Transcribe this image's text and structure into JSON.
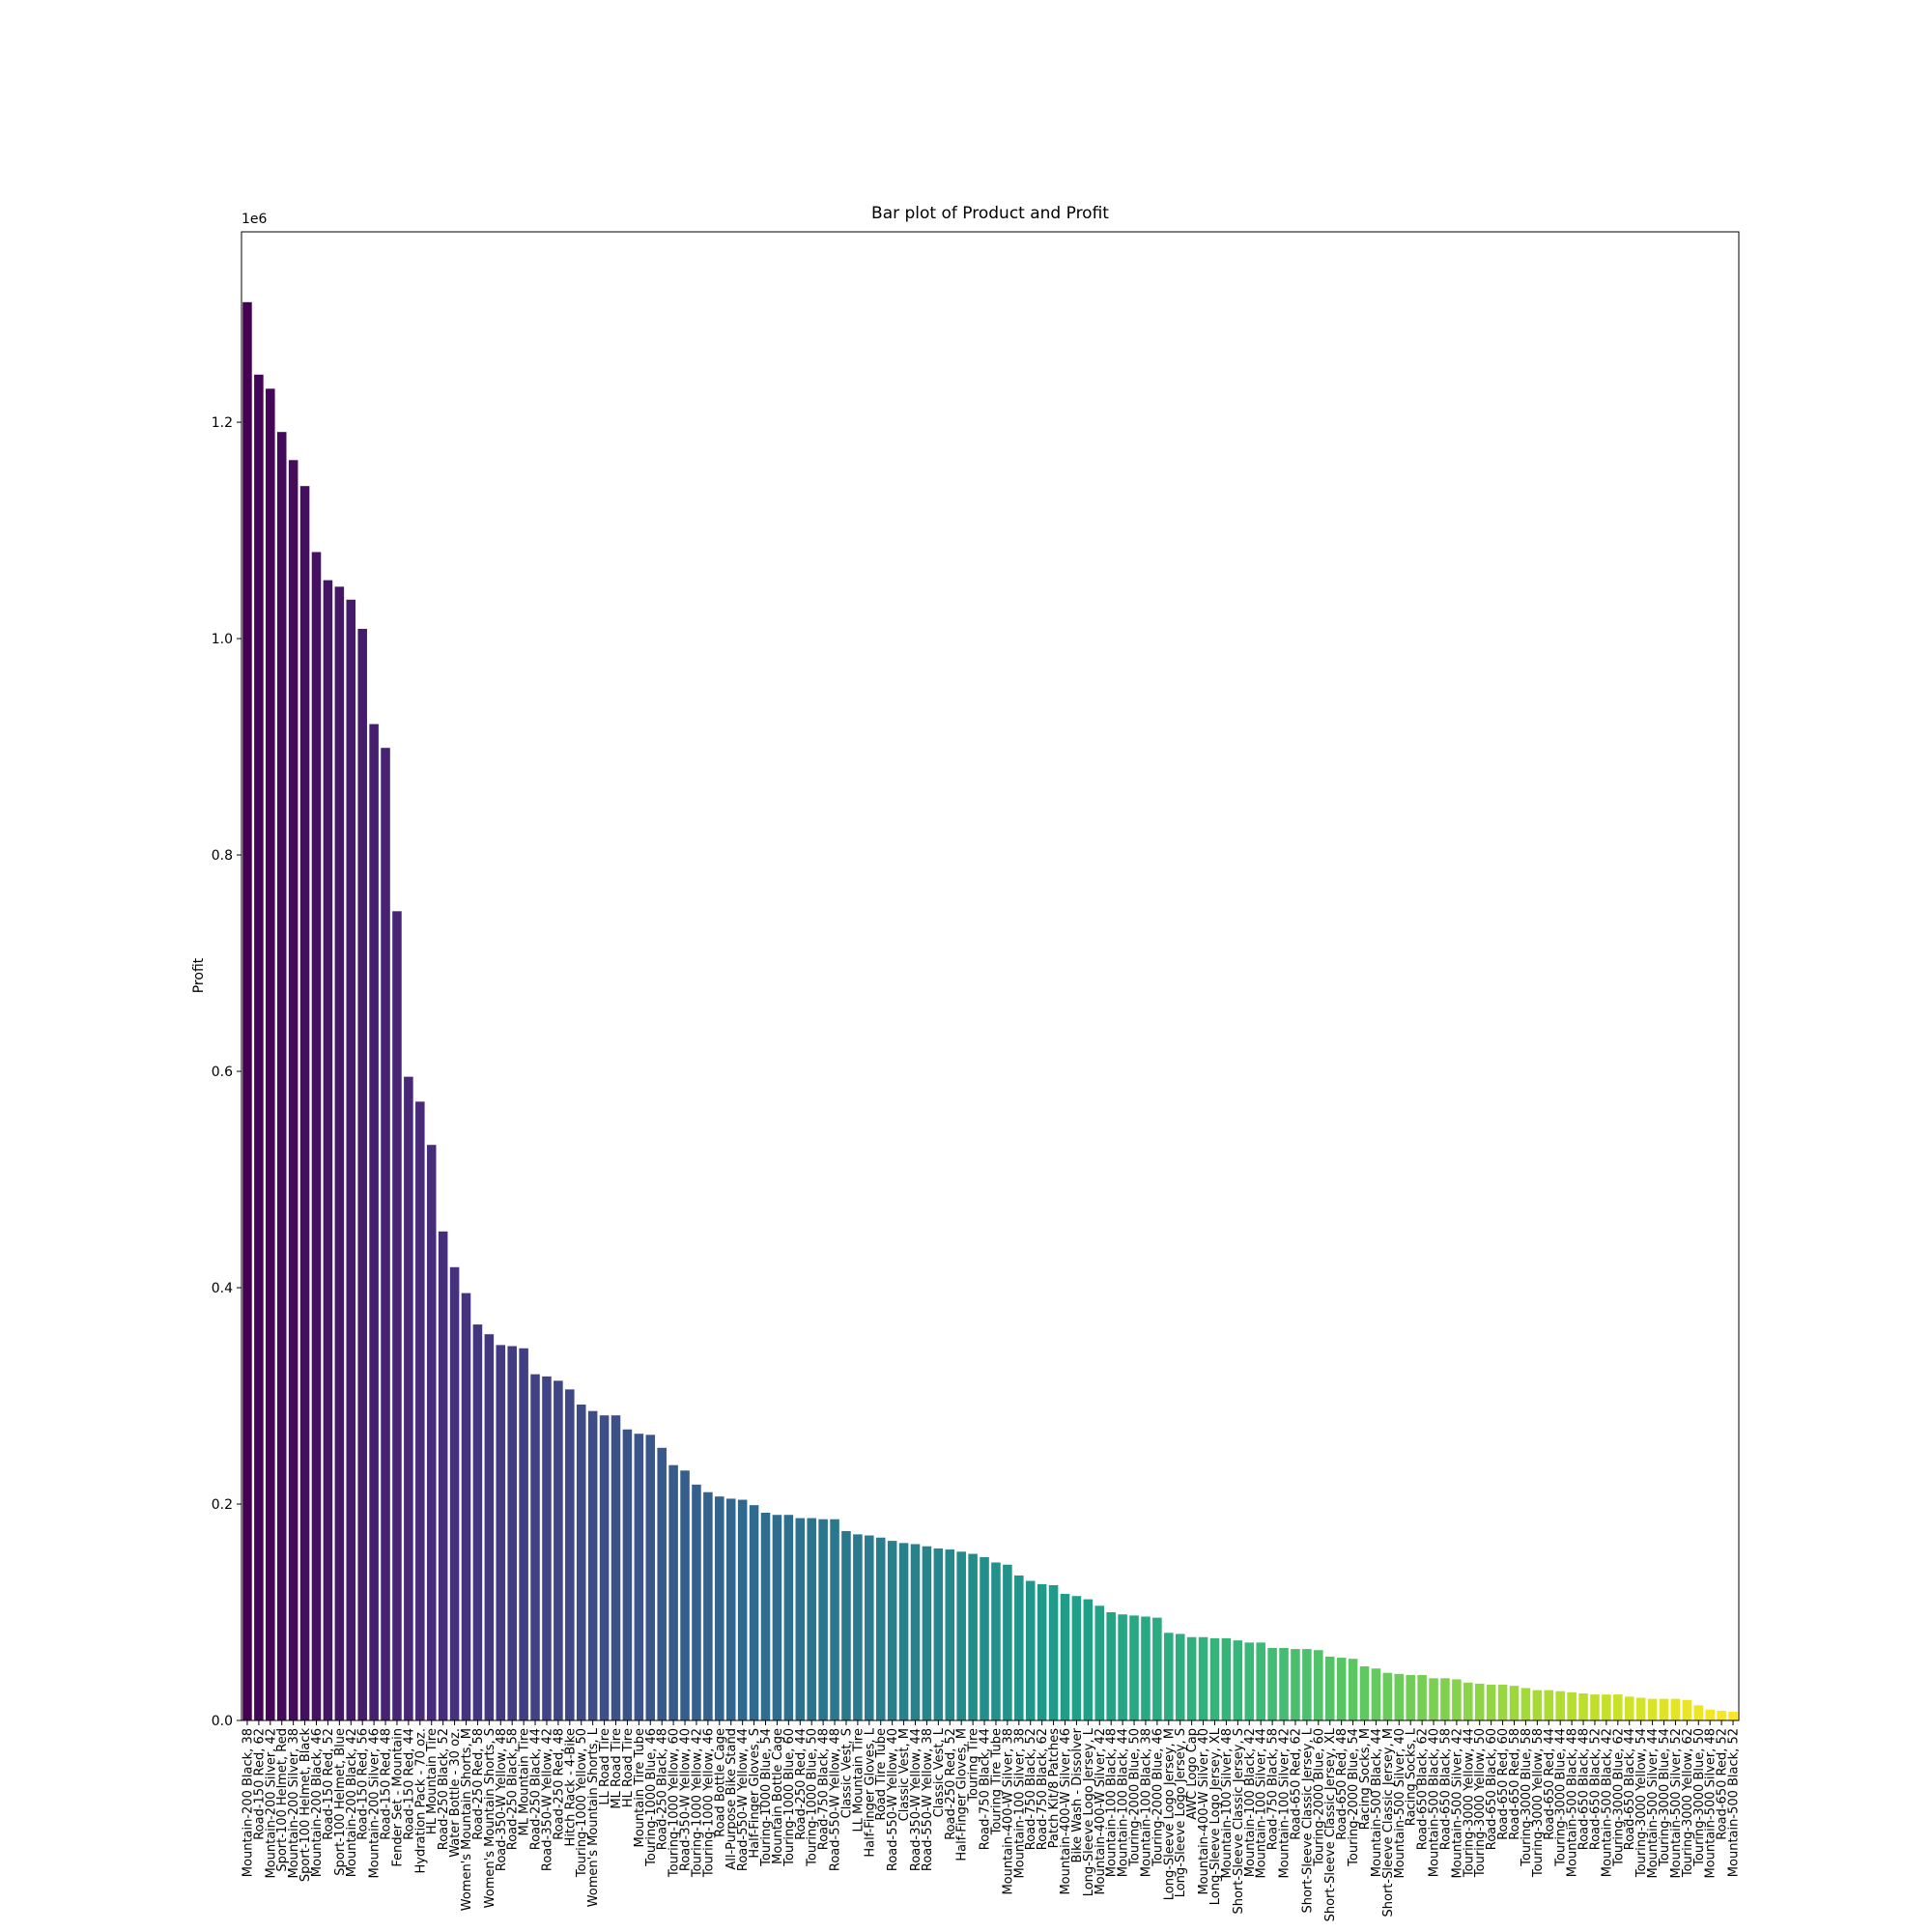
{
  "chart_data": {
    "type": "bar",
    "title": "Bar plot of Product and Profit",
    "y_label": "Profit",
    "y_offset_label": "1e6",
    "palette": "viridis",
    "categories": [
      "Mountain-200 Black, 38",
      "Road-150 Red, 62",
      "Mountain-200 Silver, 42",
      "Sport-100 Helmet, Red",
      "Mountain-200 Silver, 38",
      "Sport-100 Helmet, Black",
      "Mountain-200 Black, 46",
      "Road-150 Red, 52",
      "Sport-100 Helmet, Blue",
      "Mountain-200 Black, 42",
      "Road-150 Red, 56",
      "Mountain-200 Silver, 46",
      "Road-150 Red, 48",
      "Fender Set - Mountain",
      "Road-150 Red, 44",
      "Hydration Pack - 70 oz.",
      "HL Mountain Tire",
      "Road-250 Black, 52",
      "Water Bottle - 30 oz.",
      "Women's Mountain Shorts, M",
      "Road-250 Red, 58",
      "Women's Mountain Shorts, S",
      "Road-350-W Yellow, 48",
      "Road-250 Black, 58",
      "ML Mountain Tire",
      "Road-250 Black, 44",
      "Road-350-W Yellow, 42",
      "Road-250 Red, 48",
      "Hitch Rack - 4-Bike",
      "Touring-1000 Yellow, 50",
      "Women's Mountain Shorts, L",
      "LL Road Tire",
      "ML Road Tire",
      "HL Road Tire",
      "Mountain Tire Tube",
      "Touring-1000 Blue, 46",
      "Road-250 Black, 48",
      "Touring-1000 Yellow, 60",
      "Road-350-W Yellow, 40",
      "Touring-1000 Yellow, 42",
      "Touring-1000 Yellow, 46",
      "Road Bottle Cage",
      "All-Purpose Bike Stand",
      "Road-550-W Yellow, 44",
      "Half-Finger Gloves, S",
      "Touring-1000 Blue, 54",
      "Mountain Bottle Cage",
      "Touring-1000 Blue, 60",
      "Road-250 Red, 44",
      "Touring-1000 Blue, 50",
      "Road-750 Black, 48",
      "Road-550-W Yellow, 48",
      "Classic Vest, S",
      "LL Mountain Tire",
      "Half-Finger Gloves, L",
      "Road Tire Tube",
      "Road-550-W Yellow, 40",
      "Classic Vest, M",
      "Road-350-W Yellow, 44",
      "Road-550-W Yellow, 38",
      "Classic Vest, L",
      "Road-250 Red, 52",
      "Half-Finger Gloves, M",
      "Touring Tire",
      "Road-750 Black, 44",
      "Touring Tire Tube",
      "Mountain-400-W Silver, 38",
      "Mountain-100 Silver, 38",
      "Road-750 Black, 52",
      "Road-750 Black, 62",
      "Patch Kit/8 Patches",
      "Mountain-400-W Silver, 46",
      "Bike Wash - Dissolver",
      "Long-Sleeve Logo Jersey, L",
      "Mountain-400-W Silver, 42",
      "Mountain-100 Black, 48",
      "Mountain-100 Black, 44",
      "Touring-2000 Blue, 50",
      "Mountain-100 Black, 38",
      "Touring-2000 Blue, 46",
      "Long-Sleeve Logo Jersey, M",
      "Long-Sleeve Logo Jersey, S",
      "AWC Logo Cap",
      "Mountain-400-W Silver, 40",
      "Long-Sleeve Logo Jersey, XL",
      "Mountain-100 Silver, 48",
      "Short-Sleeve Classic Jersey, S",
      "Mountain-100 Black, 42",
      "Mountain-100 Silver, 44",
      "Road-750 Black, 58",
      "Mountain-100 Silver, 42",
      "Road-650 Red, 62",
      "Short-Sleeve Classic Jersey, L",
      "Touring-2000 Blue, 60",
      "Short-Sleeve Classic Jersey, XL",
      "Road-650 Red, 48",
      "Touring-2000 Blue, 54",
      "Racing Socks, M",
      "Mountain-500 Black, 44",
      "Short-Sleeve Classic Jersey, M",
      "Mountain-500 Silver, 40",
      "Racing Socks, L",
      "Road-650 Black, 62",
      "Mountain-500 Black, 40",
      "Road-650 Black, 58",
      "Mountain-500 Silver, 42",
      "Touring-3000 Yellow, 44",
      "Touring-3000 Yellow, 50",
      "Road-650 Black, 60",
      "Road-650 Red, 60",
      "Road-650 Red, 58",
      "Touring-3000 Blue, 58",
      "Touring-3000 Yellow, 58",
      "Road-650 Red, 44",
      "Touring-3000 Blue, 44",
      "Mountain-500 Black, 48",
      "Road-650 Black, 48",
      "Road-650 Black, 52",
      "Mountain-500 Black, 42",
      "Touring-3000 Blue, 62",
      "Road-650 Black, 44",
      "Touring-3000 Yellow, 54",
      "Mountain-500 Silver, 44",
      "Touring-3000 Blue, 54",
      "Mountain-500 Silver, 52",
      "Touring-3000 Yellow, 62",
      "Touring-3000 Blue, 50",
      "Mountain-500 Silver, 48",
      "Road-650 Red, 52",
      "Mountain-500 Black, 52"
    ],
    "values": [
      1311000,
      1244000,
      1231000,
      1191000,
      1165000,
      1141000,
      1080000,
      1054000,
      1048000,
      1036000,
      1009000,
      921000,
      899000,
      748000,
      595000,
      572000,
      532000,
      452000,
      419000,
      395000,
      366000,
      357000,
      347000,
      346000,
      344000,
      320000,
      318000,
      314000,
      306000,
      292000,
      286000,
      282000,
      282000,
      269000,
      265000,
      264000,
      252000,
      236000,
      231000,
      218000,
      211000,
      207000,
      205000,
      204000,
      199000,
      192000,
      190000,
      190000,
      187000,
      187000,
      186000,
      186000,
      175000,
      172000,
      171000,
      169000,
      166000,
      164000,
      163000,
      161000,
      159000,
      158000,
      156000,
      154000,
      151000,
      146000,
      144000,
      134000,
      129000,
      126000,
      125000,
      117000,
      115000,
      112000,
      106000,
      100000,
      98000,
      97000,
      96000,
      95000,
      81000,
      80000,
      77000,
      77000,
      76000,
      76000,
      74000,
      72000,
      72000,
      67000,
      67000,
      66000,
      66000,
      65000,
      59000,
      58000,
      57000,
      50000,
      48000,
      44000,
      43000,
      42000,
      42000,
      39000,
      39000,
      38000,
      35000,
      34000,
      33000,
      33000,
      32000,
      30000,
      28000,
      28000,
      27000,
      26000,
      25000,
      24000,
      24000,
      24000,
      22000,
      21000,
      20000,
      20000,
      20000,
      19000,
      14000,
      10000,
      9000,
      8000
    ],
    "ylim": [
      0,
      1376000
    ],
    "yticks": [
      {
        "value": 0,
        "label": "0.0"
      },
      {
        "value": 200000,
        "label": "0.2"
      },
      {
        "value": 400000,
        "label": "0.4"
      },
      {
        "value": 600000,
        "label": "0.6"
      },
      {
        "value": 800000,
        "label": "0.8"
      },
      {
        "value": 1000000,
        "label": "1.0"
      },
      {
        "value": 1200000,
        "label": "1.2"
      }
    ],
    "grid": false
  }
}
